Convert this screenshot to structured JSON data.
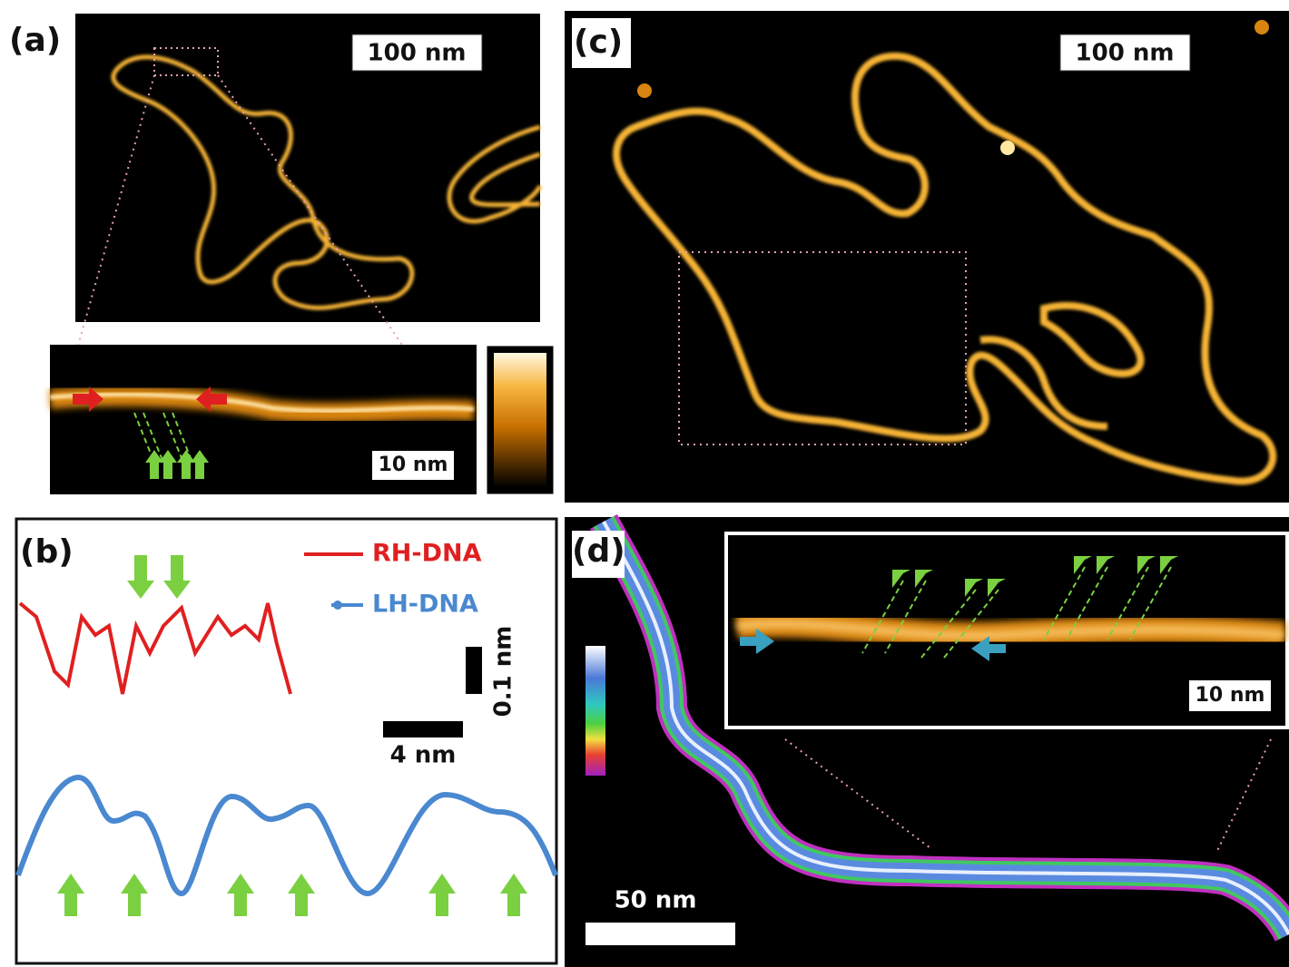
{
  "panels": [
    {
      "label": "(a)",
      "scale_bar": "100 nm",
      "inset_scale_bar": "10 nm"
    },
    {
      "label": "(b)",
      "legend": [
        "RH-DNA",
        "LH-DNA"
      ],
      "scale_y": "0.1 nm",
      "scale_x": "4 nm"
    },
    {
      "label": "(c)",
      "scale_bar": "100 nm"
    },
    {
      "label": "(d)",
      "scale_bar": "50 nm",
      "inset_scale_bar": "10 nm"
    }
  ]
}
